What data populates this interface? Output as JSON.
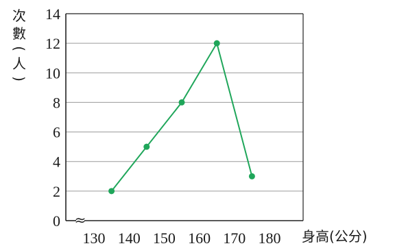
{
  "chart_data": {
    "type": "line",
    "ylabel_chars": [
      "次",
      "數",
      "(",
      "人",
      ")"
    ],
    "xlabel": "身高(公分)",
    "x": [
      135,
      145,
      155,
      165,
      175
    ],
    "values": [
      2,
      5,
      8,
      12,
      3
    ],
    "xticks": [
      "130",
      "140",
      "150",
      "160",
      "170",
      "180"
    ],
    "yticks": [
      "0",
      "2",
      "4",
      "6",
      "8",
      "10",
      "12",
      "14"
    ],
    "xlim": [
      130,
      180
    ],
    "ylim": [
      0,
      14
    ],
    "axis_break": "≈",
    "grid": true,
    "series_color": "#1fa65a",
    "axis_color": "#222222",
    "grid_color": "#9a9a9a"
  }
}
